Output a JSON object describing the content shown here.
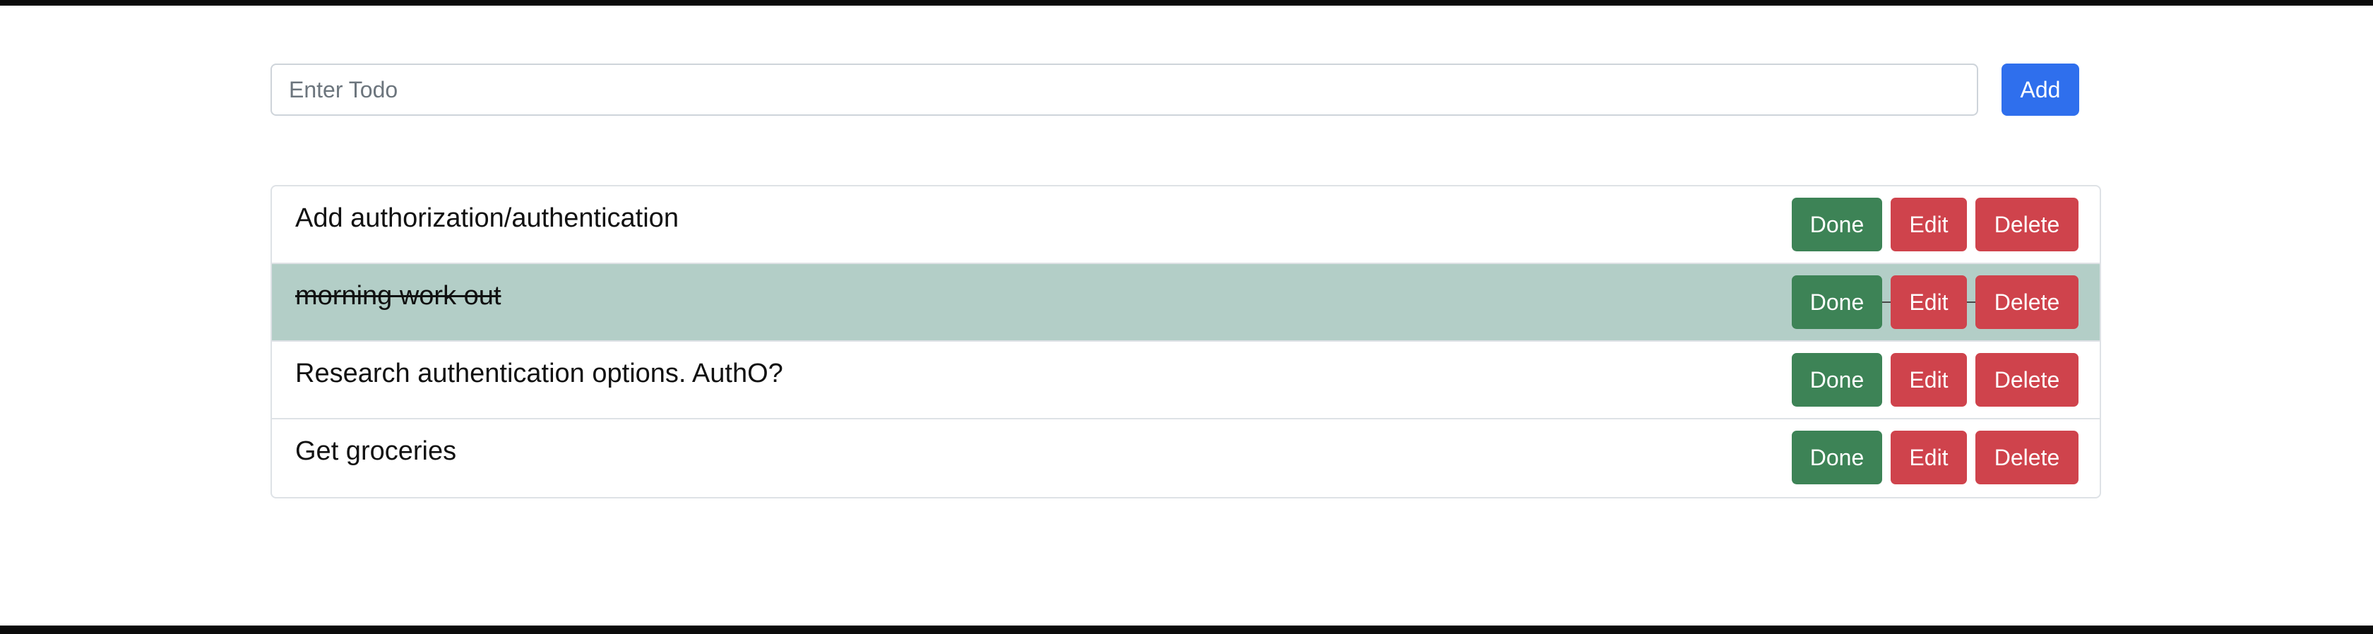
{
  "form": {
    "input_value": "",
    "input_placeholder": "Enter Todo",
    "add_label": "Add"
  },
  "todos": [
    {
      "text": "Add authorization/authentication",
      "done": false,
      "done_label": "Done",
      "edit_label": "Edit",
      "delete_label": "Delete"
    },
    {
      "text": "morning work out",
      "done": true,
      "done_label": "Done",
      "edit_label": "Edit",
      "delete_label": "Delete"
    },
    {
      "text": "Research authentication options. AuthO?",
      "done": false,
      "done_label": "Done",
      "edit_label": "Edit",
      "delete_label": "Delete"
    },
    {
      "text": "Get groceries",
      "done": false,
      "done_label": "Done",
      "edit_label": "Edit",
      "delete_label": "Delete"
    }
  ],
  "colors": {
    "add_button": "#2f6fed",
    "done_button": "#3d8356",
    "edit_button": "#cf434c",
    "delete_button": "#cf434c",
    "completed_row": "#b3cec7"
  }
}
